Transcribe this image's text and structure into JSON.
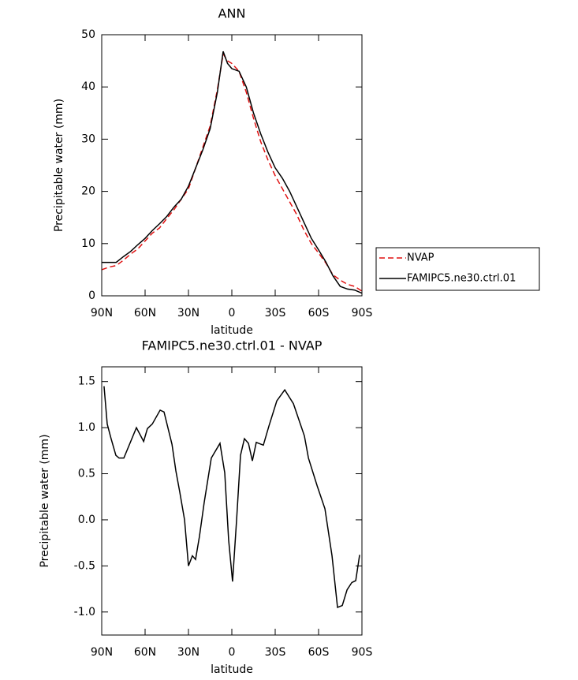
{
  "chart_data": [
    {
      "type": "line",
      "title": "ANN",
      "xlabel": "latitude",
      "ylabel": "Precipitable water (mm)",
      "x": [
        90,
        85,
        80,
        75,
        70,
        65,
        60,
        55,
        50,
        45,
        40,
        35,
        30,
        25,
        20,
        15,
        10,
        6,
        3,
        0,
        -5,
        -10,
        -15,
        -20,
        -25,
        -30,
        -35,
        -40,
        -45,
        -50,
        -55,
        -60,
        -65,
        -70,
        -75,
        -80,
        -85,
        -90
      ],
      "series": [
        {
          "name": "NVAP",
          "color": "#e01010",
          "dash": true,
          "values": [
            5,
            5.5,
            5.8,
            6.8,
            8,
            9,
            10.5,
            12,
            13,
            14.8,
            16.5,
            18.5,
            20.5,
            24.5,
            28.5,
            32.5,
            39.5,
            46.3,
            45,
            44.5,
            43,
            39,
            34,
            29.5,
            26,
            23,
            20.5,
            18,
            15.5,
            12.5,
            10,
            8.2,
            6.3,
            4,
            3,
            2.2,
            1.8,
            0.9
          ]
        },
        {
          "name": "FAMIPC5.ne30.ctrl.01",
          "color": "#000000",
          "dash": false,
          "values": [
            6.4,
            6.4,
            6.4,
            7.5,
            8.5,
            9.8,
            11,
            12.5,
            13.8,
            15.2,
            17,
            18.5,
            21,
            24.5,
            28,
            32,
            39,
            46.8,
            44.5,
            43.5,
            43,
            40,
            35,
            31,
            27.5,
            24.5,
            22.5,
            20,
            17,
            14,
            11,
            8.8,
            6.5,
            3.8,
            1.8,
            1.3,
            1.1,
            0.5
          ]
        }
      ],
      "xlim": [
        90,
        -90
      ],
      "xticks": [
        {
          "value": 90,
          "label": "90N"
        },
        {
          "value": 60,
          "label": "60N"
        },
        {
          "value": 30,
          "label": "30N"
        },
        0,
        {
          "value": -30,
          "label": "30S"
        },
        {
          "value": -60,
          "label": "60S"
        },
        {
          "value": -90,
          "label": "90S"
        }
      ],
      "ylim": [
        0,
        50
      ],
      "yticks": [
        0,
        10,
        20,
        30,
        40,
        50
      ],
      "legend": "right"
    },
    {
      "type": "line",
      "title": "FAMIPC5.ne30.ctrl.01 - NVAP",
      "xlabel": "latitude",
      "ylabel": "Precipitable water (mm)",
      "x": [
        88.4,
        86.2,
        83.5,
        80.2,
        78,
        74.7,
        66,
        61,
        58.4,
        55,
        49.6,
        46.9,
        41.4,
        38.7,
        36,
        32.7,
        30,
        27.3,
        25.1,
        22.4,
        19.1,
        14.2,
        8.2,
        4.9,
        2.2,
        -0.5,
        -3.3,
        -6,
        -8.7,
        -11.5,
        -14.2,
        -16.9,
        -21.8,
        -25.7,
        -31.1,
        -36.6,
        -42.6,
        -50.2,
        -53,
        -59,
        -64.4,
        -69.3,
        -73.1,
        -76.4,
        -79.7,
        -83,
        -85.7,
        -88.4
      ],
      "series": [
        {
          "name": "FAMIPC5.ne30.ctrl.01 - NVAP",
          "color": "#000000",
          "dash": false,
          "values": [
            1.45,
            1.04,
            0.88,
            0.7,
            0.67,
            0.67,
            1.0,
            0.85,
            0.99,
            1.04,
            1.19,
            1.17,
            0.82,
            0.53,
            0.3,
            0.0,
            -0.5,
            -0.39,
            -0.43,
            -0.18,
            0.19,
            0.67,
            0.83,
            0.51,
            -0.22,
            -0.67,
            0.0,
            0.7,
            0.88,
            0.83,
            0.64,
            0.84,
            0.81,
            1.02,
            1.29,
            1.41,
            1.26,
            0.91,
            0.67,
            0.37,
            0.12,
            -0.39,
            -0.95,
            -0.93,
            -0.76,
            -0.68,
            -0.66,
            -0.38
          ]
        }
      ],
      "xlim": [
        90,
        -90
      ],
      "xticks": [
        {
          "value": 90,
          "label": "90N"
        },
        {
          "value": 60,
          "label": "60N"
        },
        {
          "value": 30,
          "label": "30N"
        },
        0,
        {
          "value": -30,
          "label": "30S"
        },
        {
          "value": -60,
          "label": "60S"
        },
        {
          "value": -90,
          "label": "90S"
        }
      ],
      "ylim": [
        -1.25,
        1.66
      ],
      "yticks": [
        {
          "value": -1,
          "label": "-1.0"
        },
        -0.5,
        {
          "value": 0,
          "label": "0.0"
        },
        0.5,
        {
          "value": 1,
          "label": "1.0"
        },
        1.5
      ]
    }
  ]
}
